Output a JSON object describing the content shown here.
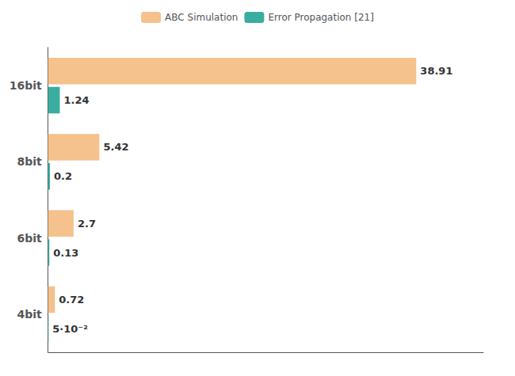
{
  "chart_data": {
    "type": "bar",
    "orientation": "horizontal",
    "categories": [
      "16bit",
      "8bit",
      "6bit",
      "4bit"
    ],
    "series": [
      {
        "name": "ABC Simulation",
        "color": "#f5c18c",
        "values": [
          38.91,
          5.42,
          2.7,
          0.72
        ]
      },
      {
        "name": "Error Propagation [21]",
        "color": "#3aada0",
        "values": [
          1.24,
          0.2,
          0.13,
          0.05
        ],
        "value_labels": [
          "1.24",
          "0.2",
          "0.13",
          "5·10⁻²"
        ]
      }
    ],
    "xlim": [
      0,
      46
    ],
    "grid": false,
    "legend": "top",
    "data_labels": true,
    "tick_labels": "y"
  }
}
